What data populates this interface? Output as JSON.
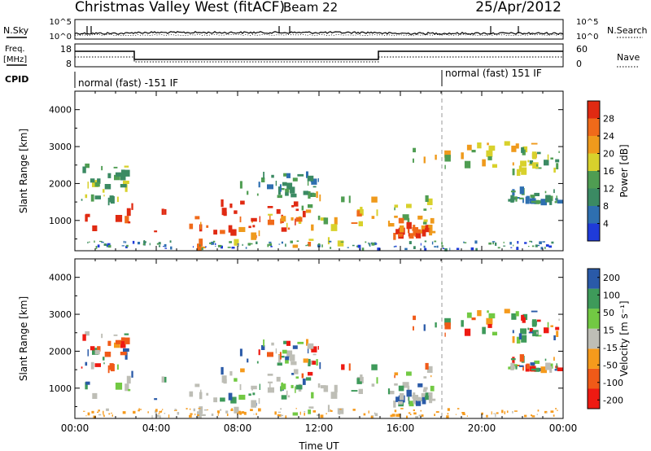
{
  "header": {
    "station": "Christmas Valley West (fitACF)",
    "beam": "Beam 22",
    "date": "25/Apr/2012"
  },
  "left_labels": {
    "nsky": "N.Sky",
    "freq_line1": "Freq.",
    "freq_line2": "[MHz]",
    "cpid": "CPID"
  },
  "right_labels": {
    "nsearch": "N.Search",
    "nave": "Nave"
  },
  "ticks": {
    "nsky_top": "10^5",
    "nsky_bottom": "10^0",
    "freq_top": "18",
    "freq_bottom": "8",
    "nave_top": "60",
    "nave_bottom": "0"
  },
  "cpid": {
    "seg1": "normal (fast) -151 IF",
    "seg2": "normal (fast) 151 IF"
  },
  "colors": {
    "power": [
      "#1f3bd9",
      "#2e6fb0",
      "#3b8a63",
      "#4f9d52",
      "#d8d12c",
      "#ef9a1c",
      "#f06a1a",
      "#e02a12"
    ],
    "velocity": [
      "#ee1a12",
      "#f05a18",
      "#f59a1c",
      "#bebeb6",
      "#72c943",
      "#3e9a5a",
      "#2a5aa8"
    ],
    "ground": "#bebeb6"
  },
  "chart_data": [
    {
      "id": "power",
      "type": "heatmap",
      "title": "",
      "xlabel": "",
      "ylabel": "Slant Range [km]",
      "xlim": [
        0,
        24
      ],
      "ylim": [
        180,
        4500
      ],
      "xticks": [
        0,
        4,
        8,
        12,
        16,
        20,
        24
      ],
      "yticks": [
        1000,
        2000,
        3000,
        4000
      ],
      "colorbar_label": "Power [dB]",
      "colorbar_ticks": [
        "4",
        "8",
        "12",
        "16",
        "20",
        "24",
        "28"
      ],
      "colorbar_range": [
        0,
        32
      ]
    },
    {
      "id": "velocity",
      "type": "heatmap",
      "title": "",
      "xlabel": "Time UT",
      "ylabel": "Slant Range [km]",
      "xlim": [
        0,
        24
      ],
      "ylim": [
        180,
        4500
      ],
      "xticks": [
        "00:00",
        "04:00",
        "08:00",
        "12:00",
        "16:00",
        "20:00",
        "00:00"
      ],
      "yticks": [
        1000,
        2000,
        3000,
        4000
      ],
      "colorbar_label": "Velocity [m s⁻¹]",
      "colorbar_ticks": [
        "200",
        "100",
        "50",
        "15",
        "-15",
        "-50",
        "-100",
        "-200"
      ],
      "colorbar_range": [
        -250,
        250
      ]
    }
  ]
}
